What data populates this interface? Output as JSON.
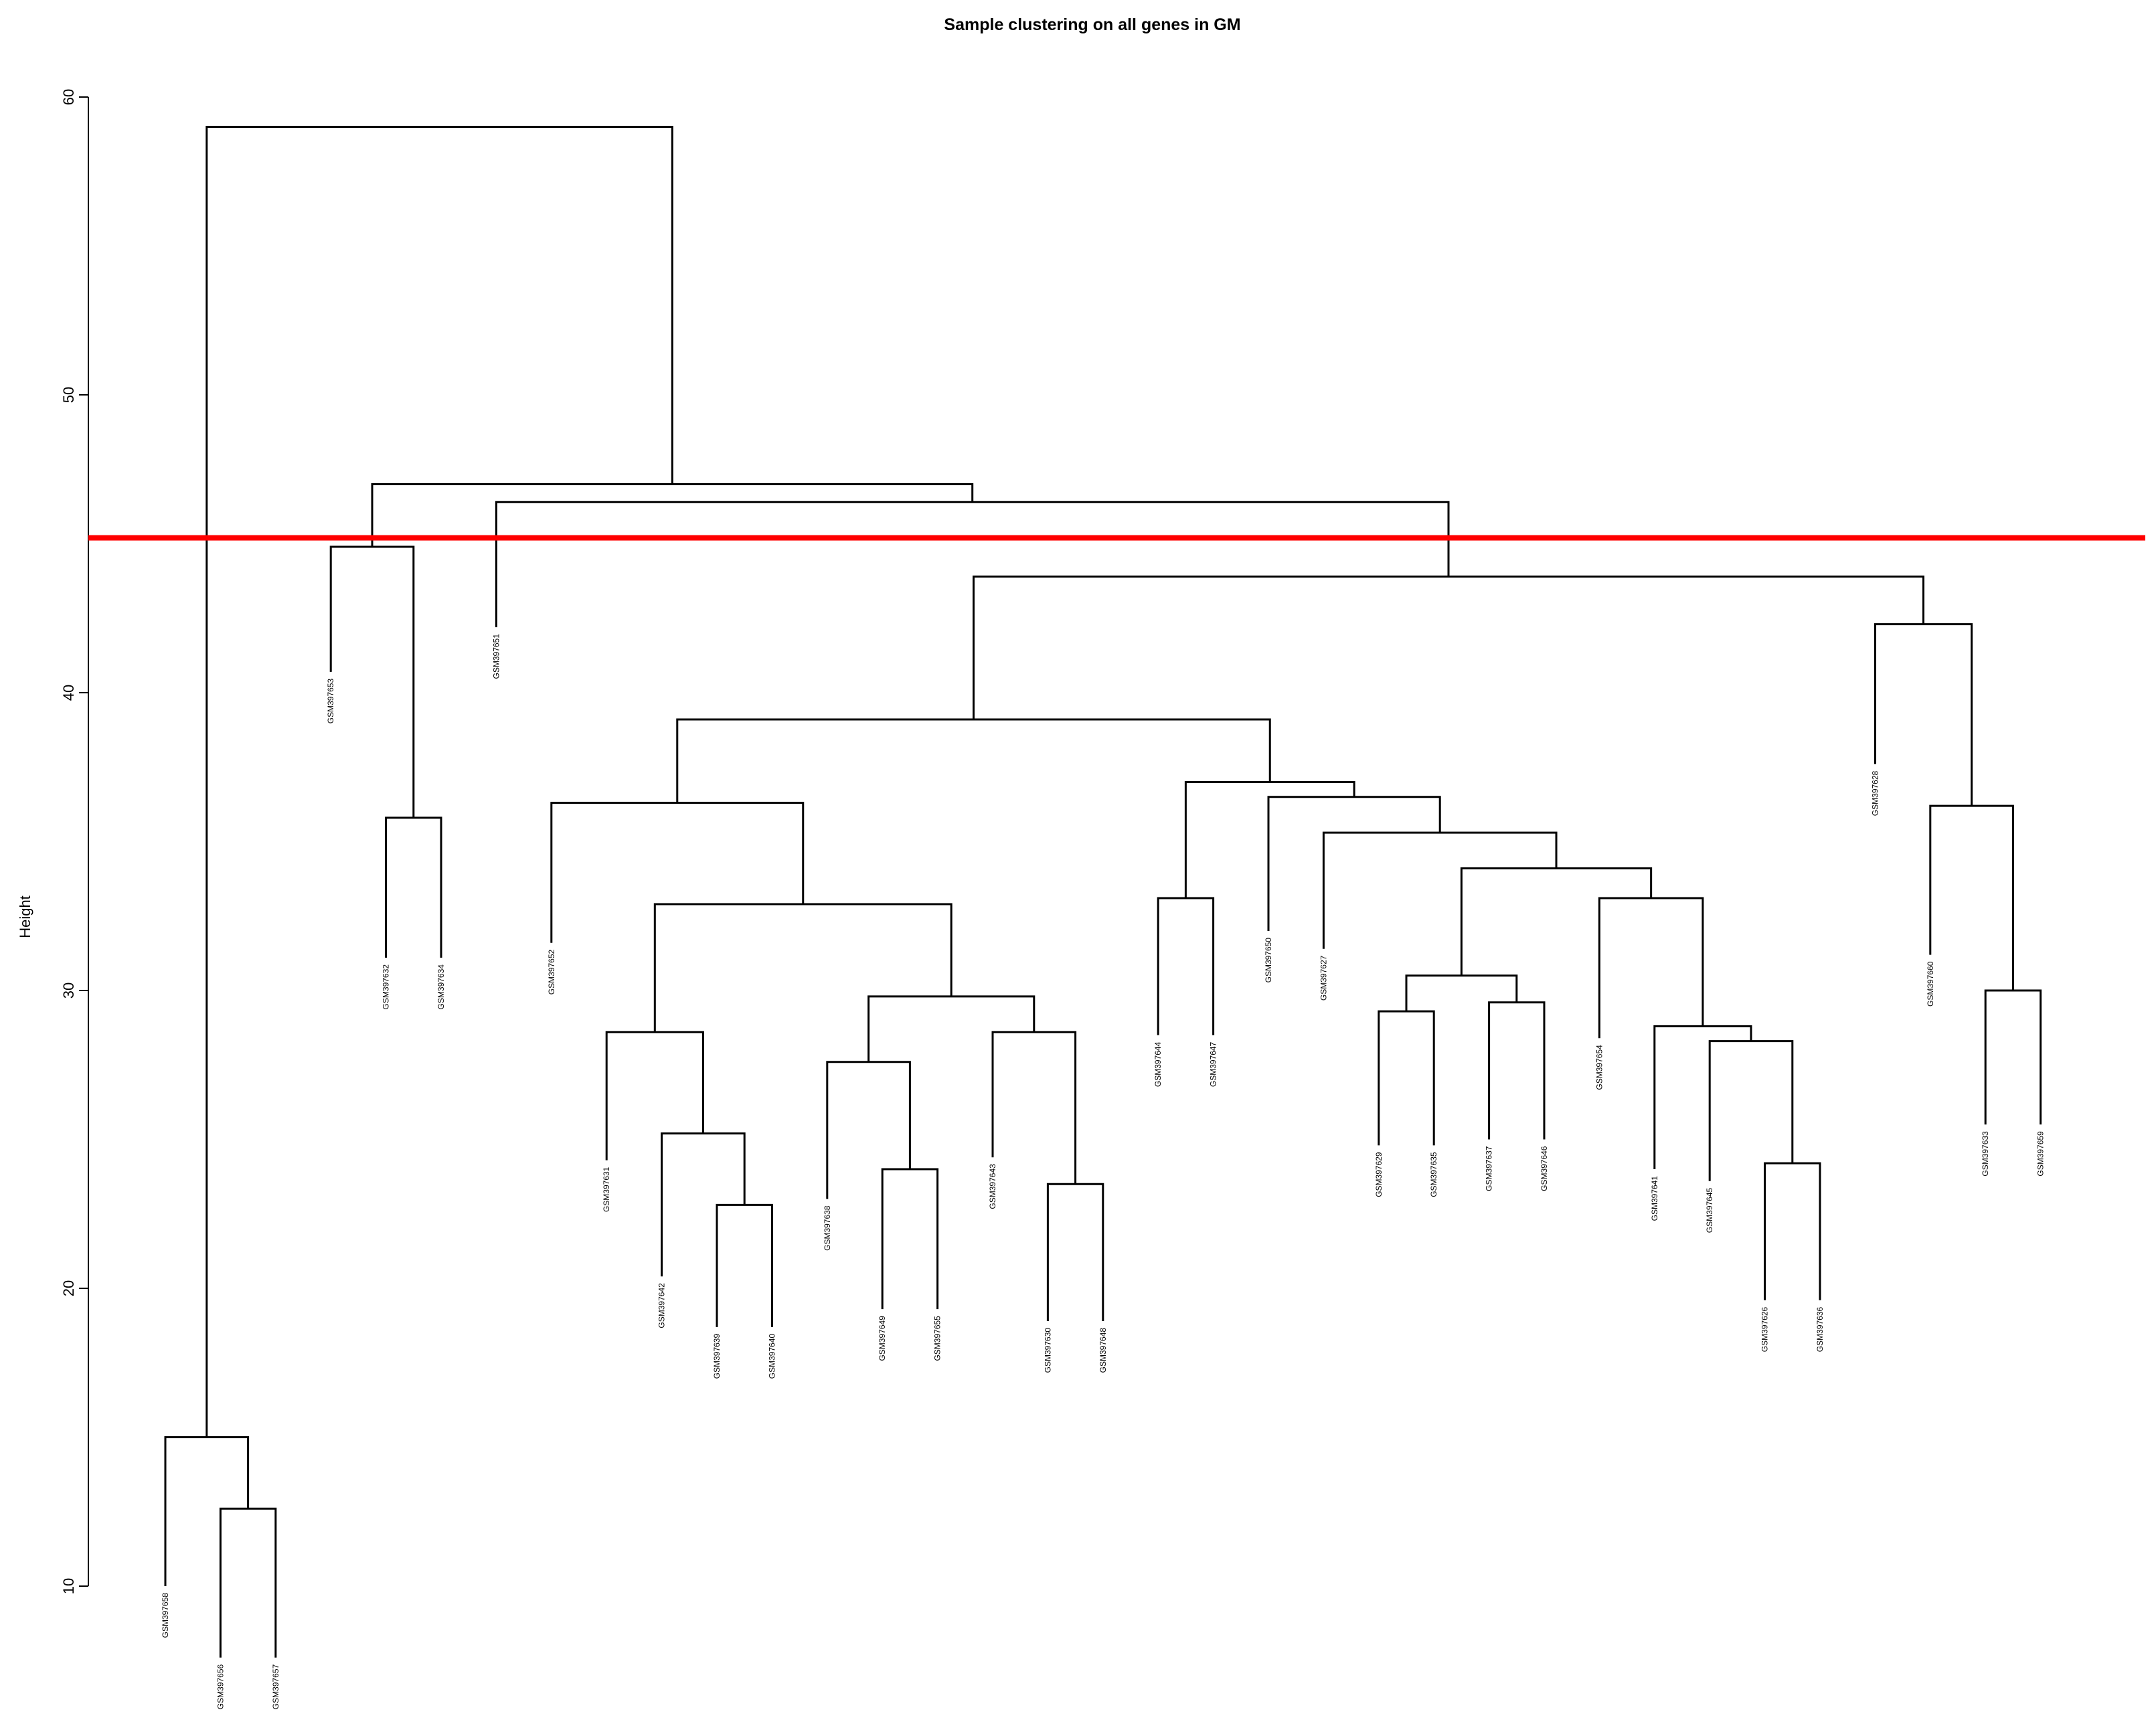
{
  "chart_data": {
    "type": "dendrogram",
    "title": "Sample clustering on all genes in GM",
    "ylabel": "Height",
    "xlabel": "",
    "ylim": [
      10,
      60
    ],
    "yticks": [
      10,
      20,
      30,
      40,
      50,
      60
    ],
    "cut_line": {
      "height": 45.2,
      "color": "#ff0000"
    },
    "line_color": "#000000",
    "leaves": [
      {
        "label": "GSM397658",
        "height": 10
      },
      {
        "label": "GSM397656",
        "height": 7.6
      },
      {
        "label": "GSM397657",
        "height": 7.6
      },
      {
        "label": "GSM397653",
        "height": 40.7
      },
      {
        "label": "GSM397632",
        "height": 31.1
      },
      {
        "label": "GSM397634",
        "height": 31.1
      },
      {
        "label": "GSM397651",
        "height": 42.2
      },
      {
        "label": "GSM397652",
        "height": 31.6
      },
      {
        "label": "GSM397631",
        "height": 24.3
      },
      {
        "label": "GSM397642",
        "height": 20.4
      },
      {
        "label": "GSM397639",
        "height": 18.7
      },
      {
        "label": "GSM397640",
        "height": 18.7
      },
      {
        "label": "GSM397638",
        "height": 23.0
      },
      {
        "label": "GSM397649",
        "height": 19.3
      },
      {
        "label": "GSM397655",
        "height": 19.3
      },
      {
        "label": "GSM397643",
        "height": 24.4
      },
      {
        "label": "GSM397630",
        "height": 18.9
      },
      {
        "label": "GSM397648",
        "height": 18.9
      },
      {
        "label": "GSM397644",
        "height": 28.5
      },
      {
        "label": "GSM397647",
        "height": 28.5
      },
      {
        "label": "GSM397650",
        "height": 32.0
      },
      {
        "label": "GSM397627",
        "height": 31.4
      },
      {
        "label": "GSM397629",
        "height": 24.8
      },
      {
        "label": "GSM397635",
        "height": 24.8
      },
      {
        "label": "GSM397637",
        "height": 25.0
      },
      {
        "label": "GSM397646",
        "height": 25.0
      },
      {
        "label": "GSM397654",
        "height": 28.4
      },
      {
        "label": "GSM397641",
        "height": 24.0
      },
      {
        "label": "GSM397645",
        "height": 23.6
      },
      {
        "label": "GSM397626",
        "height": 19.6
      },
      {
        "label": "GSM397636",
        "height": 19.6
      },
      {
        "label": "GSM397628",
        "height": 37.6
      },
      {
        "label": "GSM397660",
        "height": 31.2
      },
      {
        "label": "GSM397633",
        "height": 25.5
      },
      {
        "label": "GSM397659",
        "height": 25.5
      }
    ],
    "merges": [
      {
        "children": [
          "L1",
          "L2"
        ],
        "height": 12.6
      },
      {
        "children": [
          "L0",
          "M0"
        ],
        "height": 15.0
      },
      {
        "children": [
          "L4",
          "L5"
        ],
        "height": 35.8
      },
      {
        "children": [
          "L3",
          "M2"
        ],
        "height": 44.9
      },
      {
        "children": [
          "L10",
          "L11"
        ],
        "height": 22.8
      },
      {
        "children": [
          "L9",
          "M4"
        ],
        "height": 25.2
      },
      {
        "children": [
          "L8",
          "M5"
        ],
        "height": 28.6
      },
      {
        "children": [
          "L13",
          "L14"
        ],
        "height": 24.0
      },
      {
        "children": [
          "L12",
          "M7"
        ],
        "height": 27.6
      },
      {
        "children": [
          "L16",
          "L17"
        ],
        "height": 23.5
      },
      {
        "children": [
          "L15",
          "M9"
        ],
        "height": 28.6
      },
      {
        "children": [
          "M8",
          "M10"
        ],
        "height": 29.8
      },
      {
        "children": [
          "M6",
          "M11"
        ],
        "height": 32.9
      },
      {
        "children": [
          "L7",
          "M12"
        ],
        "height": 36.3
      },
      {
        "children": [
          "L18",
          "L19"
        ],
        "height": 33.1
      },
      {
        "children": [
          "L22",
          "L23"
        ],
        "height": 29.3
      },
      {
        "children": [
          "L24",
          "L25"
        ],
        "height": 29.6
      },
      {
        "children": [
          "M15",
          "M16"
        ],
        "height": 30.5
      },
      {
        "children": [
          "L29",
          "L30"
        ],
        "height": 24.2
      },
      {
        "children": [
          "L28",
          "M18"
        ],
        "height": 28.3
      },
      {
        "children": [
          "L27",
          "M19"
        ],
        "height": 28.8
      },
      {
        "children": [
          "L26",
          "M20"
        ],
        "height": 33.1
      },
      {
        "children": [
          "M17",
          "M21"
        ],
        "height": 34.1
      },
      {
        "children": [
          "L21",
          "M22"
        ],
        "height": 35.3
      },
      {
        "children": [
          "L20",
          "M23"
        ],
        "height": 36.5
      },
      {
        "children": [
          "M14",
          "M24"
        ],
        "height": 37.0
      },
      {
        "children": [
          "M13",
          "M25"
        ],
        "height": 39.1
      },
      {
        "children": [
          "L33",
          "L34"
        ],
        "height": 30.0
      },
      {
        "children": [
          "L32",
          "M27"
        ],
        "height": 36.2
      },
      {
        "children": [
          "L31",
          "M28"
        ],
        "height": 42.3
      },
      {
        "children": [
          "M26",
          "M29"
        ],
        "height": 43.9
      },
      {
        "children": [
          "L6",
          "M30"
        ],
        "height": 46.4
      },
      {
        "children": [
          "M3",
          "M31"
        ],
        "height": 47.0
      },
      {
        "children": [
          "M1",
          "M32"
        ],
        "height": 59.0
      }
    ]
  }
}
